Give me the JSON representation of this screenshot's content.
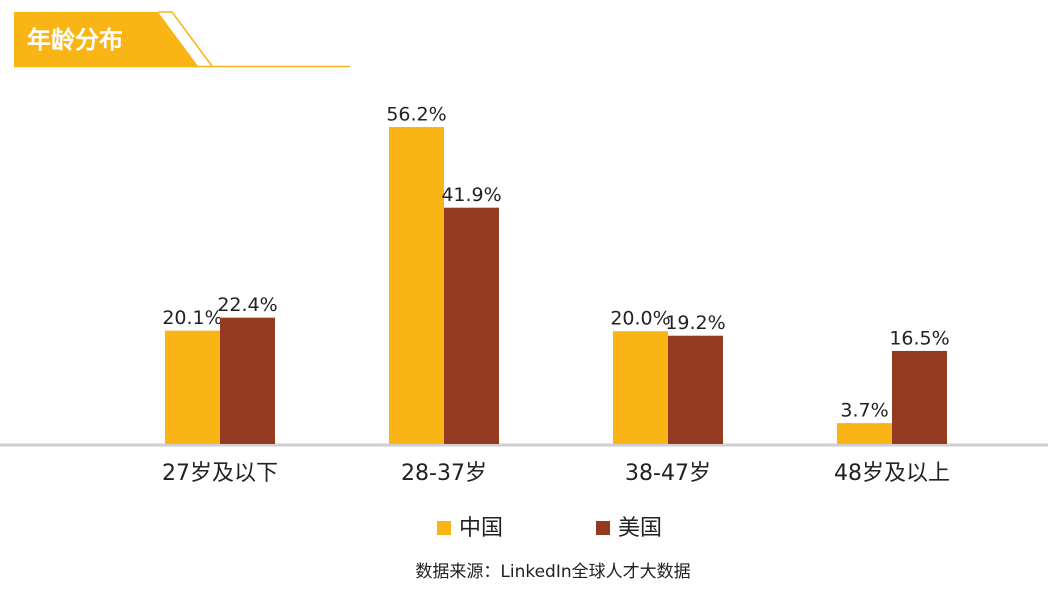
{
  "chart_data": {
    "type": "bar",
    "title": "年龄分布",
    "source": "数据来源：LinkedIn全球人才大数据",
    "categories": [
      "27岁及以下",
      "28-37岁",
      "38-47岁",
      "48岁及以上"
    ],
    "series": [
      {
        "name": "中国",
        "color": "#F9B515",
        "values": [
          20.1,
          56.2,
          20.0,
          3.7
        ],
        "value_labels": [
          "20.1%",
          "56.2%",
          "20.0%",
          "3.7%"
        ]
      },
      {
        "name": "美国",
        "color": "#943A20",
        "values": [
          22.4,
          41.9,
          19.2,
          16.5
        ],
        "value_labels": [
          "22.4%",
          "41.9%",
          "19.2%",
          "16.5%"
        ]
      }
    ],
    "legend": "bottom"
  }
}
